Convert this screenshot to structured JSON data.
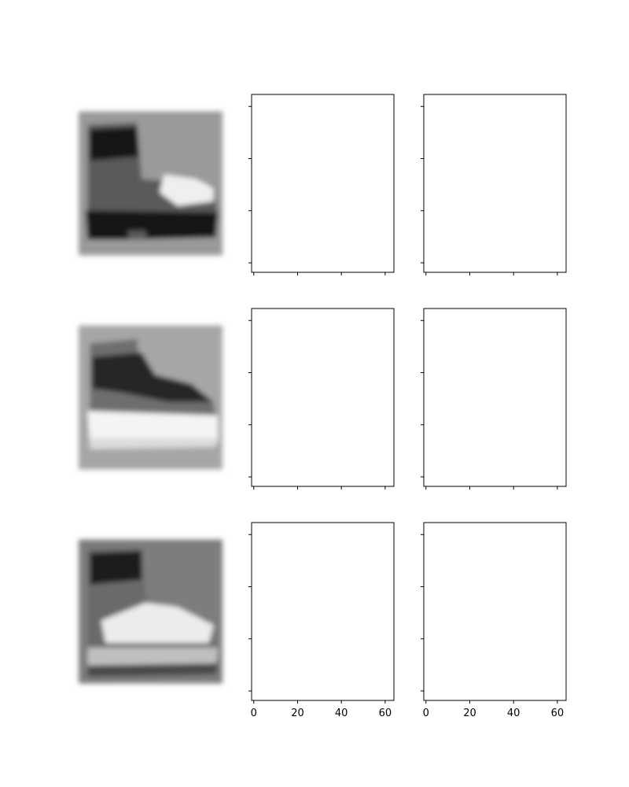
{
  "figure": {
    "background": "#ffffff",
    "layout": "3 rows x 3 columns"
  },
  "chart_data": [
    {
      "type": "image",
      "subject": "boot",
      "colormap": "grayscale",
      "variant": "light background, dark shaft and sole, bright toe",
      "colors": {
        "background": "#9a9a9a",
        "dark": "#181818",
        "mid": "#5a5a5a",
        "light": "#efefef"
      }
    },
    {
      "type": "blank",
      "xlim": [
        -1,
        64
      ],
      "ylim": [
        0,
        64
      ],
      "xticks": [
        0,
        20,
        40,
        60
      ],
      "xtick_labels_shown": false,
      "yticks": [
        0,
        20,
        40,
        60
      ],
      "ytick_labels_shown": false,
      "grid": false
    },
    {
      "type": "blank",
      "xlim": [
        -1,
        64
      ],
      "ylim": [
        0,
        64
      ],
      "xticks": [
        0,
        20,
        40,
        60
      ],
      "xtick_labels_shown": false,
      "yticks": [
        0,
        20,
        40,
        60
      ],
      "ytick_labels_shown": false,
      "grid": false
    },
    {
      "type": "image",
      "subject": "boot",
      "colormap": "grayscale",
      "variant": "light background, dark upper band, bright sole",
      "colors": {
        "background": "#a6a6a6",
        "dark": "#262626",
        "mid": "#6e6e6e",
        "light": "#f4f4f4"
      }
    },
    {
      "type": "blank",
      "xlim": [
        -1,
        64
      ],
      "ylim": [
        0,
        64
      ],
      "xticks": [
        0,
        20,
        40,
        60
      ],
      "xtick_labels_shown": false,
      "yticks": [
        0,
        20,
        40,
        60
      ],
      "ytick_labels_shown": false,
      "grid": false
    },
    {
      "type": "blank",
      "xlim": [
        -1,
        64
      ],
      "ylim": [
        0,
        64
      ],
      "xticks": [
        0,
        20,
        40,
        60
      ],
      "xtick_labels_shown": false,
      "yticks": [
        0,
        20,
        40,
        60
      ],
      "ytick_labels_shown": false,
      "grid": false
    },
    {
      "type": "image",
      "subject": "boot",
      "colormap": "grayscale",
      "variant": "darker background, dark collar, bright laces and sole",
      "colors": {
        "background": "#7d7d7d",
        "dark": "#1c1c1c",
        "mid": "#6a6a6a",
        "light": "#ececec"
      }
    },
    {
      "type": "blank",
      "xlim": [
        -1,
        64
      ],
      "ylim": [
        0,
        64
      ],
      "xticks": [
        0,
        20,
        40,
        60
      ],
      "xtick_labels_shown": true,
      "yticks": [
        0,
        20,
        40,
        60
      ],
      "ytick_labels_shown": false,
      "grid": false
    },
    {
      "type": "blank",
      "xlim": [
        -1,
        64
      ],
      "ylim": [
        0,
        64
      ],
      "xticks": [
        0,
        20,
        40,
        60
      ],
      "xtick_labels_shown": true,
      "yticks": [
        0,
        20,
        40,
        60
      ],
      "ytick_labels_shown": false,
      "grid": false
    }
  ]
}
